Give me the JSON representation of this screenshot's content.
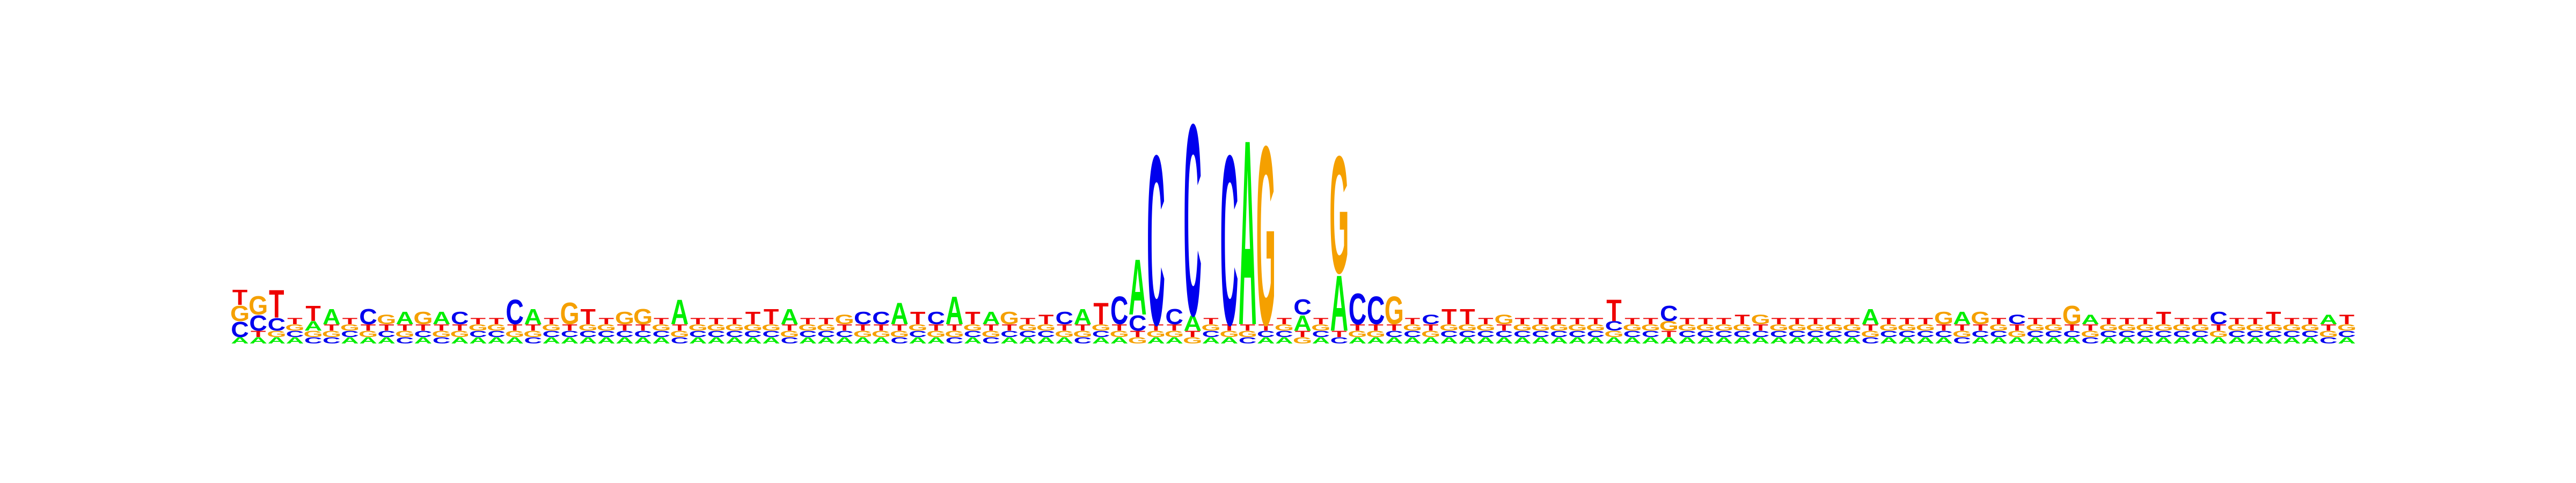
{
  "logo": {
    "type": "sequence-logo",
    "alphabet": [
      "A",
      "C",
      "G",
      "T"
    ],
    "colors": {
      "A": "#00ee00",
      "C": "#0000ee",
      "G": "#f5a000",
      "T": "#ee0000"
    },
    "positions": [
      {
        "A": 0.02,
        "C": 0.05,
        "G": 0.05,
        "T": 0.05
      },
      {
        "A": 0.02,
        "C": 0.05,
        "G": 0.06,
        "T": 0.02
      },
      {
        "A": 0.02,
        "C": 0.04,
        "G": 0.02,
        "T": 0.09
      },
      {
        "A": 0.02,
        "C": 0.02,
        "G": 0.02,
        "T": 0.02
      },
      {
        "A": 0.03,
        "C": 0.02,
        "G": 0.02,
        "T": 0.05
      },
      {
        "A": 0.05,
        "C": 0.02,
        "G": 0.02,
        "T": 0.02
      },
      {
        "A": 0.02,
        "C": 0.02,
        "G": 0.02,
        "T": 0.02
      },
      {
        "A": 0.02,
        "C": 0.05,
        "G": 0.02,
        "T": 0.02
      },
      {
        "A": 0.02,
        "C": 0.02,
        "G": 0.03,
        "T": 0.02
      },
      {
        "A": 0.04,
        "C": 0.02,
        "G": 0.02,
        "T": 0.02
      },
      {
        "A": 0.02,
        "C": 0.02,
        "G": 0.04,
        "T": 0.02
      },
      {
        "A": 0.04,
        "C": 0.02,
        "G": 0.02,
        "T": 0.02
      },
      {
        "A": 0.02,
        "C": 0.04,
        "G": 0.02,
        "T": 0.02
      },
      {
        "A": 0.02,
        "C": 0.02,
        "G": 0.02,
        "T": 0.02
      },
      {
        "A": 0.02,
        "C": 0.02,
        "G": 0.02,
        "T": 0.02
      },
      {
        "A": 0.02,
        "C": 0.08,
        "G": 0.02,
        "T": 0.02
      },
      {
        "A": 0.05,
        "C": 0.02,
        "G": 0.02,
        "T": 0.02
      },
      {
        "A": 0.02,
        "C": 0.02,
        "G": 0.02,
        "T": 0.02
      },
      {
        "A": 0.02,
        "C": 0.02,
        "G": 0.07,
        "T": 0.02
      },
      {
        "A": 0.02,
        "C": 0.02,
        "G": 0.02,
        "T": 0.05
      },
      {
        "A": 0.02,
        "C": 0.02,
        "G": 0.02,
        "T": 0.02
      },
      {
        "A": 0.02,
        "C": 0.02,
        "G": 0.04,
        "T": 0.02
      },
      {
        "A": 0.02,
        "C": 0.02,
        "G": 0.05,
        "T": 0.02
      },
      {
        "A": 0.02,
        "C": 0.02,
        "G": 0.02,
        "T": 0.02
      },
      {
        "A": 0.08,
        "C": 0.02,
        "G": 0.02,
        "T": 0.02
      },
      {
        "A": 0.02,
        "C": 0.02,
        "G": 0.02,
        "T": 0.02
      },
      {
        "A": 0.02,
        "C": 0.02,
        "G": 0.02,
        "T": 0.02
      },
      {
        "A": 0.02,
        "C": 0.02,
        "G": 0.02,
        "T": 0.02
      },
      {
        "A": 0.02,
        "C": 0.02,
        "G": 0.02,
        "T": 0.04
      },
      {
        "A": 0.02,
        "C": 0.02,
        "G": 0.02,
        "T": 0.05
      },
      {
        "A": 0.05,
        "C": 0.02,
        "G": 0.02,
        "T": 0.02
      },
      {
        "A": 0.02,
        "C": 0.02,
        "G": 0.02,
        "T": 0.02
      },
      {
        "A": 0.02,
        "C": 0.02,
        "G": 0.02,
        "T": 0.02
      },
      {
        "A": 0.02,
        "C": 0.02,
        "G": 0.03,
        "T": 0.02
      },
      {
        "A": 0.02,
        "C": 0.04,
        "G": 0.02,
        "T": 0.02
      },
      {
        "A": 0.02,
        "C": 0.04,
        "G": 0.02,
        "T": 0.02
      },
      {
        "A": 0.07,
        "C": 0.02,
        "G": 0.02,
        "T": 0.02
      },
      {
        "A": 0.02,
        "C": 0.02,
        "G": 0.02,
        "T": 0.04
      },
      {
        "A": 0.02,
        "C": 0.04,
        "G": 0.02,
        "T": 0.02
      },
      {
        "A": 0.09,
        "C": 0.02,
        "G": 0.02,
        "T": 0.02
      },
      {
        "A": 0.02,
        "C": 0.02,
        "G": 0.02,
        "T": 0.04
      },
      {
        "A": 0.04,
        "C": 0.02,
        "G": 0.02,
        "T": 0.02
      },
      {
        "A": 0.02,
        "C": 0.02,
        "G": 0.04,
        "T": 0.02
      },
      {
        "A": 0.02,
        "C": 0.02,
        "G": 0.02,
        "T": 0.02
      },
      {
        "A": 0.02,
        "C": 0.02,
        "G": 0.02,
        "T": 0.03
      },
      {
        "A": 0.02,
        "C": 0.04,
        "G": 0.02,
        "T": 0.02
      },
      {
        "A": 0.05,
        "C": 0.02,
        "G": 0.02,
        "T": 0.02
      },
      {
        "A": 0.02,
        "C": 0.02,
        "G": 0.02,
        "T": 0.07
      },
      {
        "A": 0.02,
        "C": 0.09,
        "G": 0.02,
        "T": 0.02
      },
      {
        "A": 0.18,
        "C": 0.05,
        "G": 0.02,
        "T": 0.02
      },
      {
        "A": 0.02,
        "C": 0.55,
        "G": 0.02,
        "T": 0.02
      },
      {
        "A": 0.02,
        "C": 0.05,
        "G": 0.02,
        "T": 0.02
      },
      {
        "A": 0.05,
        "C": 0.62,
        "G": 0.02,
        "T": 0.02
      },
      {
        "A": 0.02,
        "C": 0.02,
        "G": 0.02,
        "T": 0.02
      },
      {
        "A": 0.02,
        "C": 0.55,
        "G": 0.02,
        "T": 0.02
      },
      {
        "A": 0.6,
        "C": 0.02,
        "G": 0.02,
        "T": 0.02
      },
      {
        "A": 0.02,
        "C": 0.02,
        "G": 0.58,
        "T": 0.02
      },
      {
        "A": 0.02,
        "C": 0.02,
        "G": 0.02,
        "T": 0.02
      },
      {
        "A": 0.05,
        "C": 0.05,
        "G": 0.02,
        "T": 0.02
      },
      {
        "A": 0.02,
        "C": 0.02,
        "G": 0.02,
        "T": 0.02
      },
      {
        "A": 0.18,
        "C": 0.02,
        "G": 0.38,
        "T": 0.02
      },
      {
        "A": 0.02,
        "C": 0.1,
        "G": 0.02,
        "T": 0.02
      },
      {
        "A": 0.02,
        "C": 0.09,
        "G": 0.02,
        "T": 0.02
      },
      {
        "A": 0.02,
        "C": 0.02,
        "G": 0.09,
        "T": 0.02
      },
      {
        "A": 0.02,
        "C": 0.02,
        "G": 0.02,
        "T": 0.02
      },
      {
        "A": 0.02,
        "C": 0.03,
        "G": 0.02,
        "T": 0.02
      },
      {
        "A": 0.02,
        "C": 0.02,
        "G": 0.02,
        "T": 0.05
      },
      {
        "A": 0.02,
        "C": 0.02,
        "G": 0.02,
        "T": 0.05
      },
      {
        "A": 0.02,
        "C": 0.02,
        "G": 0.02,
        "T": 0.02
      },
      {
        "A": 0.02,
        "C": 0.02,
        "G": 0.03,
        "T": 0.02
      },
      {
        "A": 0.02,
        "C": 0.02,
        "G": 0.02,
        "T": 0.02
      },
      {
        "A": 0.02,
        "C": 0.02,
        "G": 0.02,
        "T": 0.02
      },
      {
        "A": 0.02,
        "C": 0.02,
        "G": 0.02,
        "T": 0.02
      },
      {
        "A": 0.02,
        "C": 0.02,
        "G": 0.02,
        "T": 0.02
      },
      {
        "A": 0.02,
        "C": 0.02,
        "G": 0.02,
        "T": 0.02
      },
      {
        "A": 0.02,
        "C": 0.03,
        "G": 0.02,
        "T": 0.07
      },
      {
        "A": 0.02,
        "C": 0.02,
        "G": 0.02,
        "T": 0.02
      },
      {
        "A": 0.02,
        "C": 0.02,
        "G": 0.02,
        "T": 0.02
      },
      {
        "A": 0.02,
        "C": 0.05,
        "G": 0.03,
        "T": 0.02
      },
      {
        "A": 0.02,
        "C": 0.02,
        "G": 0.02,
        "T": 0.02
      },
      {
        "A": 0.02,
        "C": 0.02,
        "G": 0.02,
        "T": 0.02
      },
      {
        "A": 0.02,
        "C": 0.02,
        "G": 0.02,
        "T": 0.02
      },
      {
        "A": 0.02,
        "C": 0.02,
        "G": 0.02,
        "T": 0.03
      },
      {
        "A": 0.02,
        "C": 0.02,
        "G": 0.03,
        "T": 0.02
      },
      {
        "A": 0.02,
        "C": 0.02,
        "G": 0.02,
        "T": 0.02
      },
      {
        "A": 0.02,
        "C": 0.02,
        "G": 0.02,
        "T": 0.02
      },
      {
        "A": 0.02,
        "C": 0.02,
        "G": 0.02,
        "T": 0.02
      },
      {
        "A": 0.02,
        "C": 0.02,
        "G": 0.02,
        "T": 0.02
      },
      {
        "A": 0.02,
        "C": 0.02,
        "G": 0.02,
        "T": 0.02
      },
      {
        "A": 0.05,
        "C": 0.02,
        "G": 0.02,
        "T": 0.02
      },
      {
        "A": 0.02,
        "C": 0.02,
        "G": 0.02,
        "T": 0.02
      },
      {
        "A": 0.02,
        "C": 0.02,
        "G": 0.02,
        "T": 0.02
      },
      {
        "A": 0.02,
        "C": 0.02,
        "G": 0.02,
        "T": 0.02
      },
      {
        "A": 0.02,
        "C": 0.02,
        "G": 0.04,
        "T": 0.02
      },
      {
        "A": 0.04,
        "C": 0.02,
        "G": 0.02,
        "T": 0.02
      },
      {
        "A": 0.02,
        "C": 0.02,
        "G": 0.04,
        "T": 0.02
      },
      {
        "A": 0.02,
        "C": 0.02,
        "G": 0.02,
        "T": 0.02
      },
      {
        "A": 0.02,
        "C": 0.03,
        "G": 0.02,
        "T": 0.02
      },
      {
        "A": 0.02,
        "C": 0.02,
        "G": 0.02,
        "T": 0.02
      },
      {
        "A": 0.02,
        "C": 0.02,
        "G": 0.02,
        "T": 0.02
      },
      {
        "A": 0.02,
        "C": 0.02,
        "G": 0.06,
        "T": 0.02
      },
      {
        "A": 0.03,
        "C": 0.02,
        "G": 0.02,
        "T": 0.02
      },
      {
        "A": 0.02,
        "C": 0.02,
        "G": 0.02,
        "T": 0.02
      },
      {
        "A": 0.02,
        "C": 0.02,
        "G": 0.02,
        "T": 0.02
      },
      {
        "A": 0.02,
        "C": 0.02,
        "G": 0.02,
        "T": 0.02
      },
      {
        "A": 0.02,
        "C": 0.02,
        "G": 0.02,
        "T": 0.04
      },
      {
        "A": 0.02,
        "C": 0.02,
        "G": 0.02,
        "T": 0.02
      },
      {
        "A": 0.02,
        "C": 0.02,
        "G": 0.02,
        "T": 0.02
      },
      {
        "A": 0.02,
        "C": 0.04,
        "G": 0.02,
        "T": 0.02
      },
      {
        "A": 0.02,
        "C": 0.02,
        "G": 0.02,
        "T": 0.02
      },
      {
        "A": 0.02,
        "C": 0.02,
        "G": 0.02,
        "T": 0.02
      },
      {
        "A": 0.02,
        "C": 0.02,
        "G": 0.02,
        "T": 0.04
      },
      {
        "A": 0.02,
        "C": 0.02,
        "G": 0.02,
        "T": 0.02
      },
      {
        "A": 0.02,
        "C": 0.02,
        "G": 0.02,
        "T": 0.02
      },
      {
        "A": 0.03,
        "C": 0.02,
        "G": 0.02,
        "T": 0.02
      },
      {
        "A": 0.02,
        "C": 0.02,
        "G": 0.02,
        "T": 0.03
      }
    ]
  }
}
